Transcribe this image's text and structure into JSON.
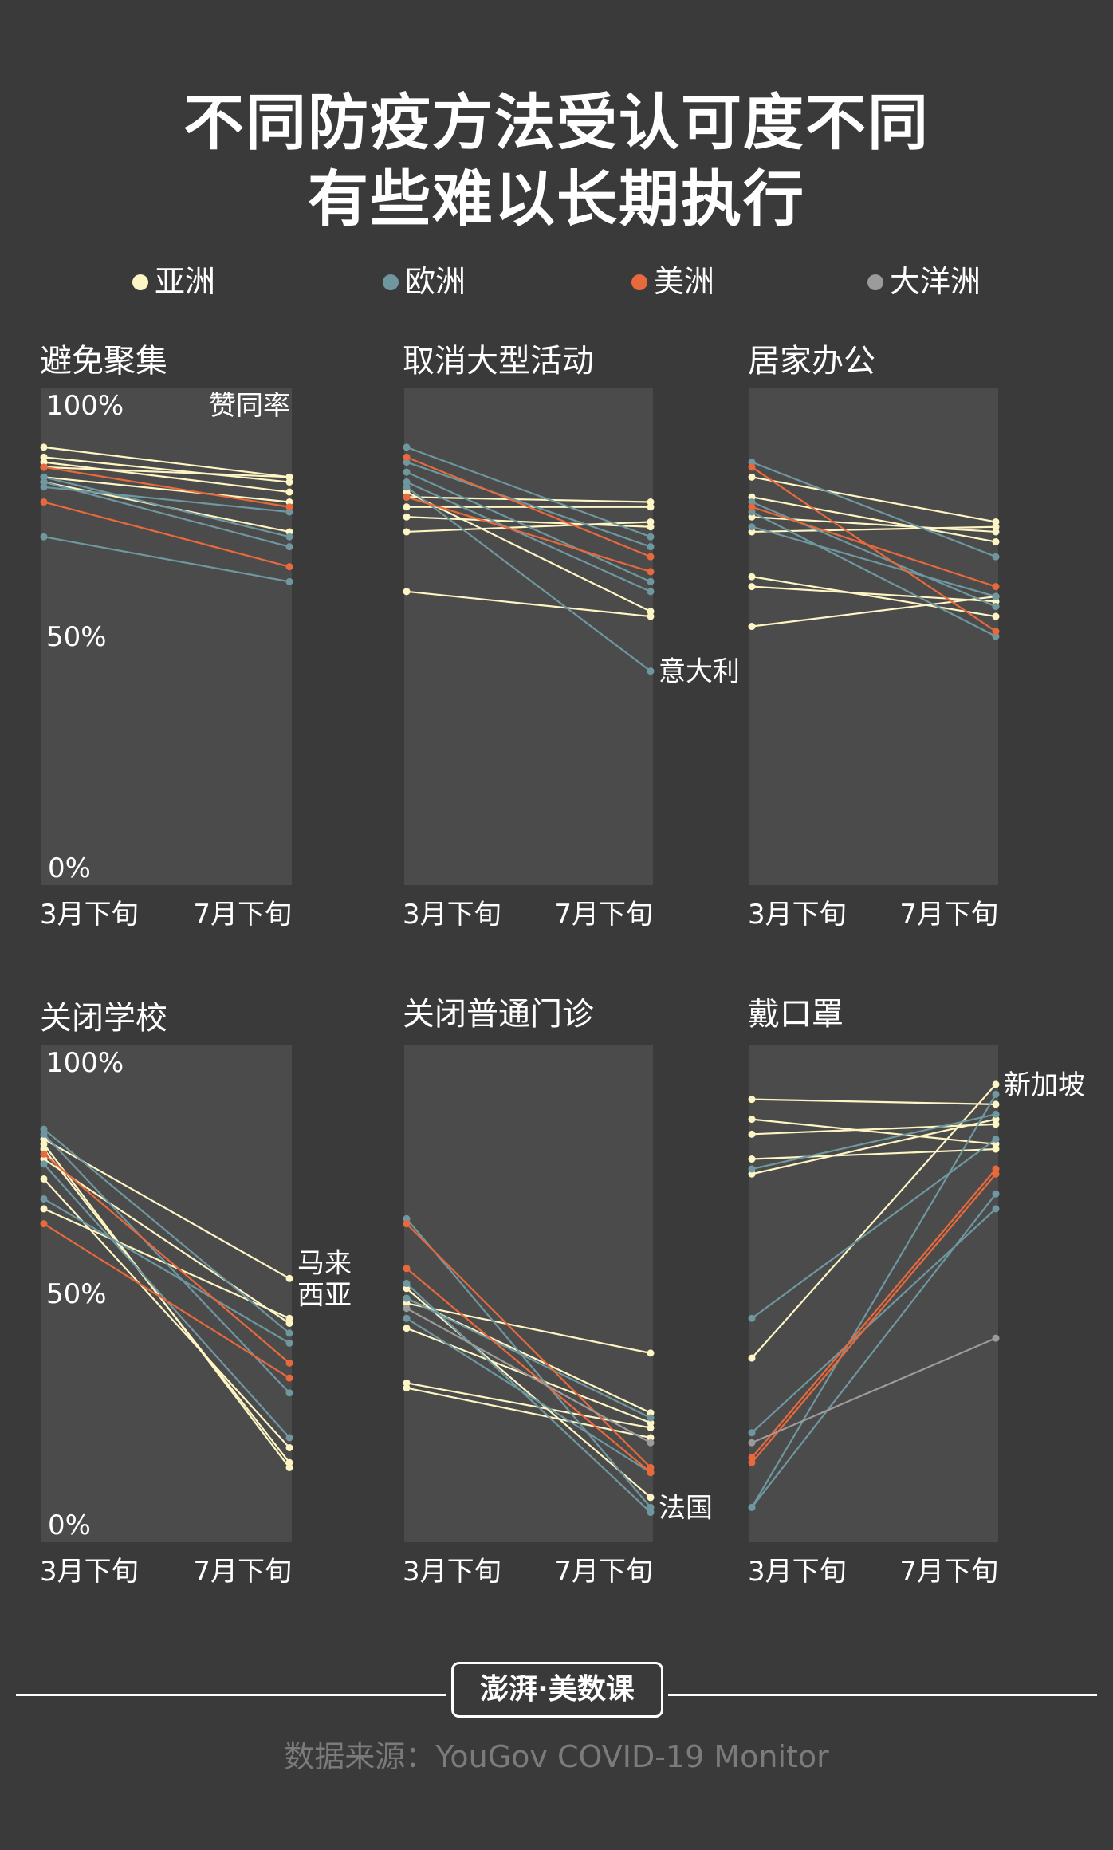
{
  "title_line1": "不同防疫方法受认可度不同",
  "title_line2": "有些难以长期执行",
  "legend": [
    {
      "label": "亚洲",
      "color": "#fdf5c4"
    },
    {
      "label": "欧洲",
      "color": "#6f97a0"
    },
    {
      "label": "美洲",
      "color": "#e8693c"
    },
    {
      "label": "大洋洲",
      "color": "#9b9b9b"
    }
  ],
  "colors": {
    "asia": "#fdf5c4",
    "europe": "#6f97a0",
    "america": "#e8693c",
    "oceania": "#9b9b9b",
    "panel": "#4b4b4b",
    "background": "#3b3a3b"
  },
  "y_labels": [
    "100%",
    "50%",
    "0%"
  ],
  "value_label": "赞同率",
  "x_labels": [
    "3月下旬",
    "7月下旬"
  ],
  "chart_data": [
    {
      "type": "line",
      "title": "避免聚集",
      "ylim": [
        0,
        100
      ],
      "x": [
        "3月下旬",
        "7月下旬"
      ],
      "series": [
        {
          "group": "asia",
          "values": [
            88,
            82
          ]
        },
        {
          "group": "asia",
          "values": [
            86,
            81
          ]
        },
        {
          "group": "asia",
          "values": [
            85,
            79
          ]
        },
        {
          "group": "asia",
          "values": [
            84,
            82
          ]
        },
        {
          "group": "asia",
          "values": [
            81,
            71
          ]
        },
        {
          "group": "asia",
          "values": [
            82,
            77
          ]
        },
        {
          "group": "europe",
          "values": [
            81,
            68
          ]
        },
        {
          "group": "europe",
          "values": [
            80,
            75
          ]
        },
        {
          "group": "europe",
          "values": [
            82,
            70
          ]
        },
        {
          "group": "europe",
          "values": [
            70,
            61
          ]
        },
        {
          "group": "america",
          "values": [
            84,
            76
          ]
        },
        {
          "group": "america",
          "values": [
            77,
            64
          ]
        }
      ]
    },
    {
      "type": "line",
      "title": "取消大型活动",
      "ylim": [
        0,
        100
      ],
      "x": [
        "3月下旬",
        "7月下旬"
      ],
      "series": [
        {
          "group": "asia",
          "values": [
            76,
            76
          ]
        },
        {
          "group": "asia",
          "values": [
            74,
            72
          ]
        },
        {
          "group": "asia",
          "values": [
            71,
            73
          ]
        },
        {
          "group": "asia",
          "values": [
            59,
            54
          ]
        },
        {
          "group": "asia",
          "values": [
            78,
            77
          ]
        },
        {
          "group": "asia",
          "values": [
            79,
            55
          ]
        },
        {
          "group": "europe",
          "values": [
            88,
            70
          ]
        },
        {
          "group": "europe",
          "values": [
            85,
            68
          ]
        },
        {
          "group": "europe",
          "values": [
            81,
            59
          ]
        },
        {
          "group": "europe",
          "values": [
            83,
            61
          ]
        },
        {
          "group": "europe",
          "values": [
            80,
            43
          ]
        },
        {
          "group": "america",
          "values": [
            86,
            66
          ]
        },
        {
          "group": "america",
          "values": [
            78,
            63
          ]
        }
      ],
      "annotations": [
        {
          "text": "意大利",
          "series_index": 10
        }
      ]
    },
    {
      "type": "line",
      "title": "居家办公",
      "ylim": [
        0,
        100
      ],
      "x": [
        "3月下旬",
        "7月下旬"
      ],
      "series": [
        {
          "group": "asia",
          "values": [
            82,
            73
          ]
        },
        {
          "group": "asia",
          "values": [
            78,
            69
          ]
        },
        {
          "group": "asia",
          "values": [
            74,
            71
          ]
        },
        {
          "group": "asia",
          "values": [
            71,
            72
          ]
        },
        {
          "group": "asia",
          "values": [
            62,
            54
          ]
        },
        {
          "group": "asia",
          "values": [
            60,
            57
          ]
        },
        {
          "group": "asia",
          "values": [
            52,
            58
          ]
        },
        {
          "group": "europe",
          "values": [
            85,
            66
          ]
        },
        {
          "group": "europe",
          "values": [
            77,
            56
          ]
        },
        {
          "group": "europe",
          "values": [
            75,
            50
          ]
        },
        {
          "group": "europe",
          "values": [
            72,
            58
          ]
        },
        {
          "group": "america",
          "values": [
            84,
            51
          ]
        },
        {
          "group": "america",
          "values": [
            76,
            60
          ]
        }
      ]
    },
    {
      "type": "line",
      "title": "关闭学校",
      "ylim": [
        0,
        100
      ],
      "x": [
        "3月下旬",
        "7月下旬"
      ],
      "series": [
        {
          "group": "asia",
          "values": [
            81,
            53
          ]
        },
        {
          "group": "asia",
          "values": [
            80,
            15
          ]
        },
        {
          "group": "asia",
          "values": [
            79,
            16
          ]
        },
        {
          "group": "asia",
          "values": [
            73,
            19
          ]
        },
        {
          "group": "asia",
          "values": [
            67,
            45
          ]
        },
        {
          "group": "asia",
          "values": [
            77,
            44
          ]
        },
        {
          "group": "europe",
          "values": [
            83,
            42
          ]
        },
        {
          "group": "europe",
          "values": [
            82,
            30
          ]
        },
        {
          "group": "europe",
          "values": [
            76,
            21
          ]
        },
        {
          "group": "europe",
          "values": [
            69,
            40
          ]
        },
        {
          "group": "america",
          "values": [
            64,
            33
          ]
        },
        {
          "group": "america",
          "values": [
            78,
            36
          ]
        }
      ],
      "annotations": [
        {
          "text": "马来\n西亚",
          "series_index": 0
        }
      ]
    },
    {
      "type": "line",
      "title": "关闭普通门诊",
      "ylim": [
        0,
        100
      ],
      "x": [
        "3月下旬",
        "7月下旬"
      ],
      "series": [
        {
          "group": "asia",
          "values": [
            48,
            38
          ]
        },
        {
          "group": "asia",
          "values": [
            49,
            26
          ]
        },
        {
          "group": "asia",
          "values": [
            43,
            24
          ]
        },
        {
          "group": "asia",
          "values": [
            32,
            23
          ]
        },
        {
          "group": "asia",
          "values": [
            31,
            21
          ]
        },
        {
          "group": "asia",
          "values": [
            51,
            9
          ]
        },
        {
          "group": "europe",
          "values": [
            65,
            7
          ]
        },
        {
          "group": "europe",
          "values": [
            52,
            6
          ]
        },
        {
          "group": "europe",
          "values": [
            45,
            14
          ]
        },
        {
          "group": "europe",
          "values": [
            49,
            25
          ]
        },
        {
          "group": "america",
          "values": [
            64,
            15
          ]
        },
        {
          "group": "america",
          "values": [
            55,
            14
          ]
        },
        {
          "group": "oceania",
          "values": [
            47,
            20
          ]
        }
      ],
      "annotations": [
        {
          "text": "法国",
          "series_index": 6
        }
      ]
    },
    {
      "type": "line",
      "title": "戴口罩",
      "ylim": [
        0,
        100
      ],
      "x": [
        "3月下旬",
        "7月下旬"
      ],
      "series": [
        {
          "group": "asia",
          "values": [
            89,
            88
          ]
        },
        {
          "group": "asia",
          "values": [
            85,
            80
          ]
        },
        {
          "group": "asia",
          "values": [
            82,
            84
          ]
        },
        {
          "group": "asia",
          "values": [
            77,
            79
          ]
        },
        {
          "group": "asia",
          "values": [
            74,
            85
          ]
        },
        {
          "group": "asia",
          "values": [
            37,
            92
          ]
        },
        {
          "group": "europe",
          "values": [
            75,
            86
          ]
        },
        {
          "group": "europe",
          "values": [
            45,
            81
          ]
        },
        {
          "group": "europe",
          "values": [
            22,
            67
          ]
        },
        {
          "group": "europe",
          "values": [
            7,
            90
          ]
        },
        {
          "group": "europe",
          "values": [
            7,
            70
          ]
        },
        {
          "group": "america",
          "values": [
            17,
            75
          ]
        },
        {
          "group": "america",
          "values": [
            16,
            74
          ]
        },
        {
          "group": "oceania",
          "values": [
            20,
            41
          ]
        }
      ],
      "annotations": [
        {
          "text": "新加坡",
          "series_index": 5
        }
      ]
    }
  ],
  "logo_text": "澎湃·美数课",
  "source": "数据来源：YouGov COVID-19 Monitor"
}
